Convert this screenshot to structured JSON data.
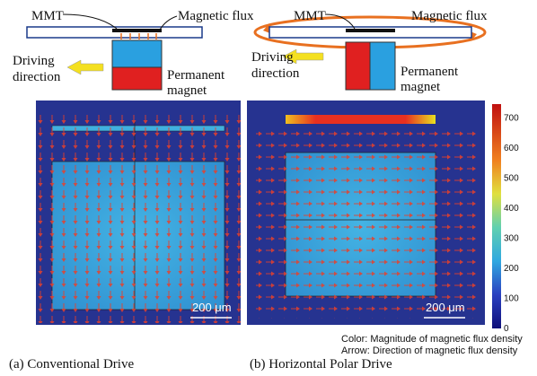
{
  "diagram_a": {
    "mmt": "MMT",
    "flux": "Magnetic flux",
    "driving": [
      "Driving",
      "direction"
    ],
    "magnet": [
      "Permanent",
      "magnet"
    ]
  },
  "diagram_b": {
    "mmt": "MMT",
    "flux": "Magnetic flux",
    "driving": [
      "Driving",
      "direction"
    ],
    "magnet": [
      "Permanent",
      "magnet"
    ]
  },
  "scale_bars": [
    "200 μm",
    "200 μm"
  ],
  "colorbar": {
    "ticks": [
      0,
      100,
      200,
      300,
      400,
      500,
      600,
      700
    ]
  },
  "notes": [
    "Color: Magnitude of magnetic flux density",
    "Arrow: Direction of magnetic flux density"
  ],
  "captions": [
    "(a) Conventional Drive",
    "(b) Horizontal Polar Drive"
  ]
}
